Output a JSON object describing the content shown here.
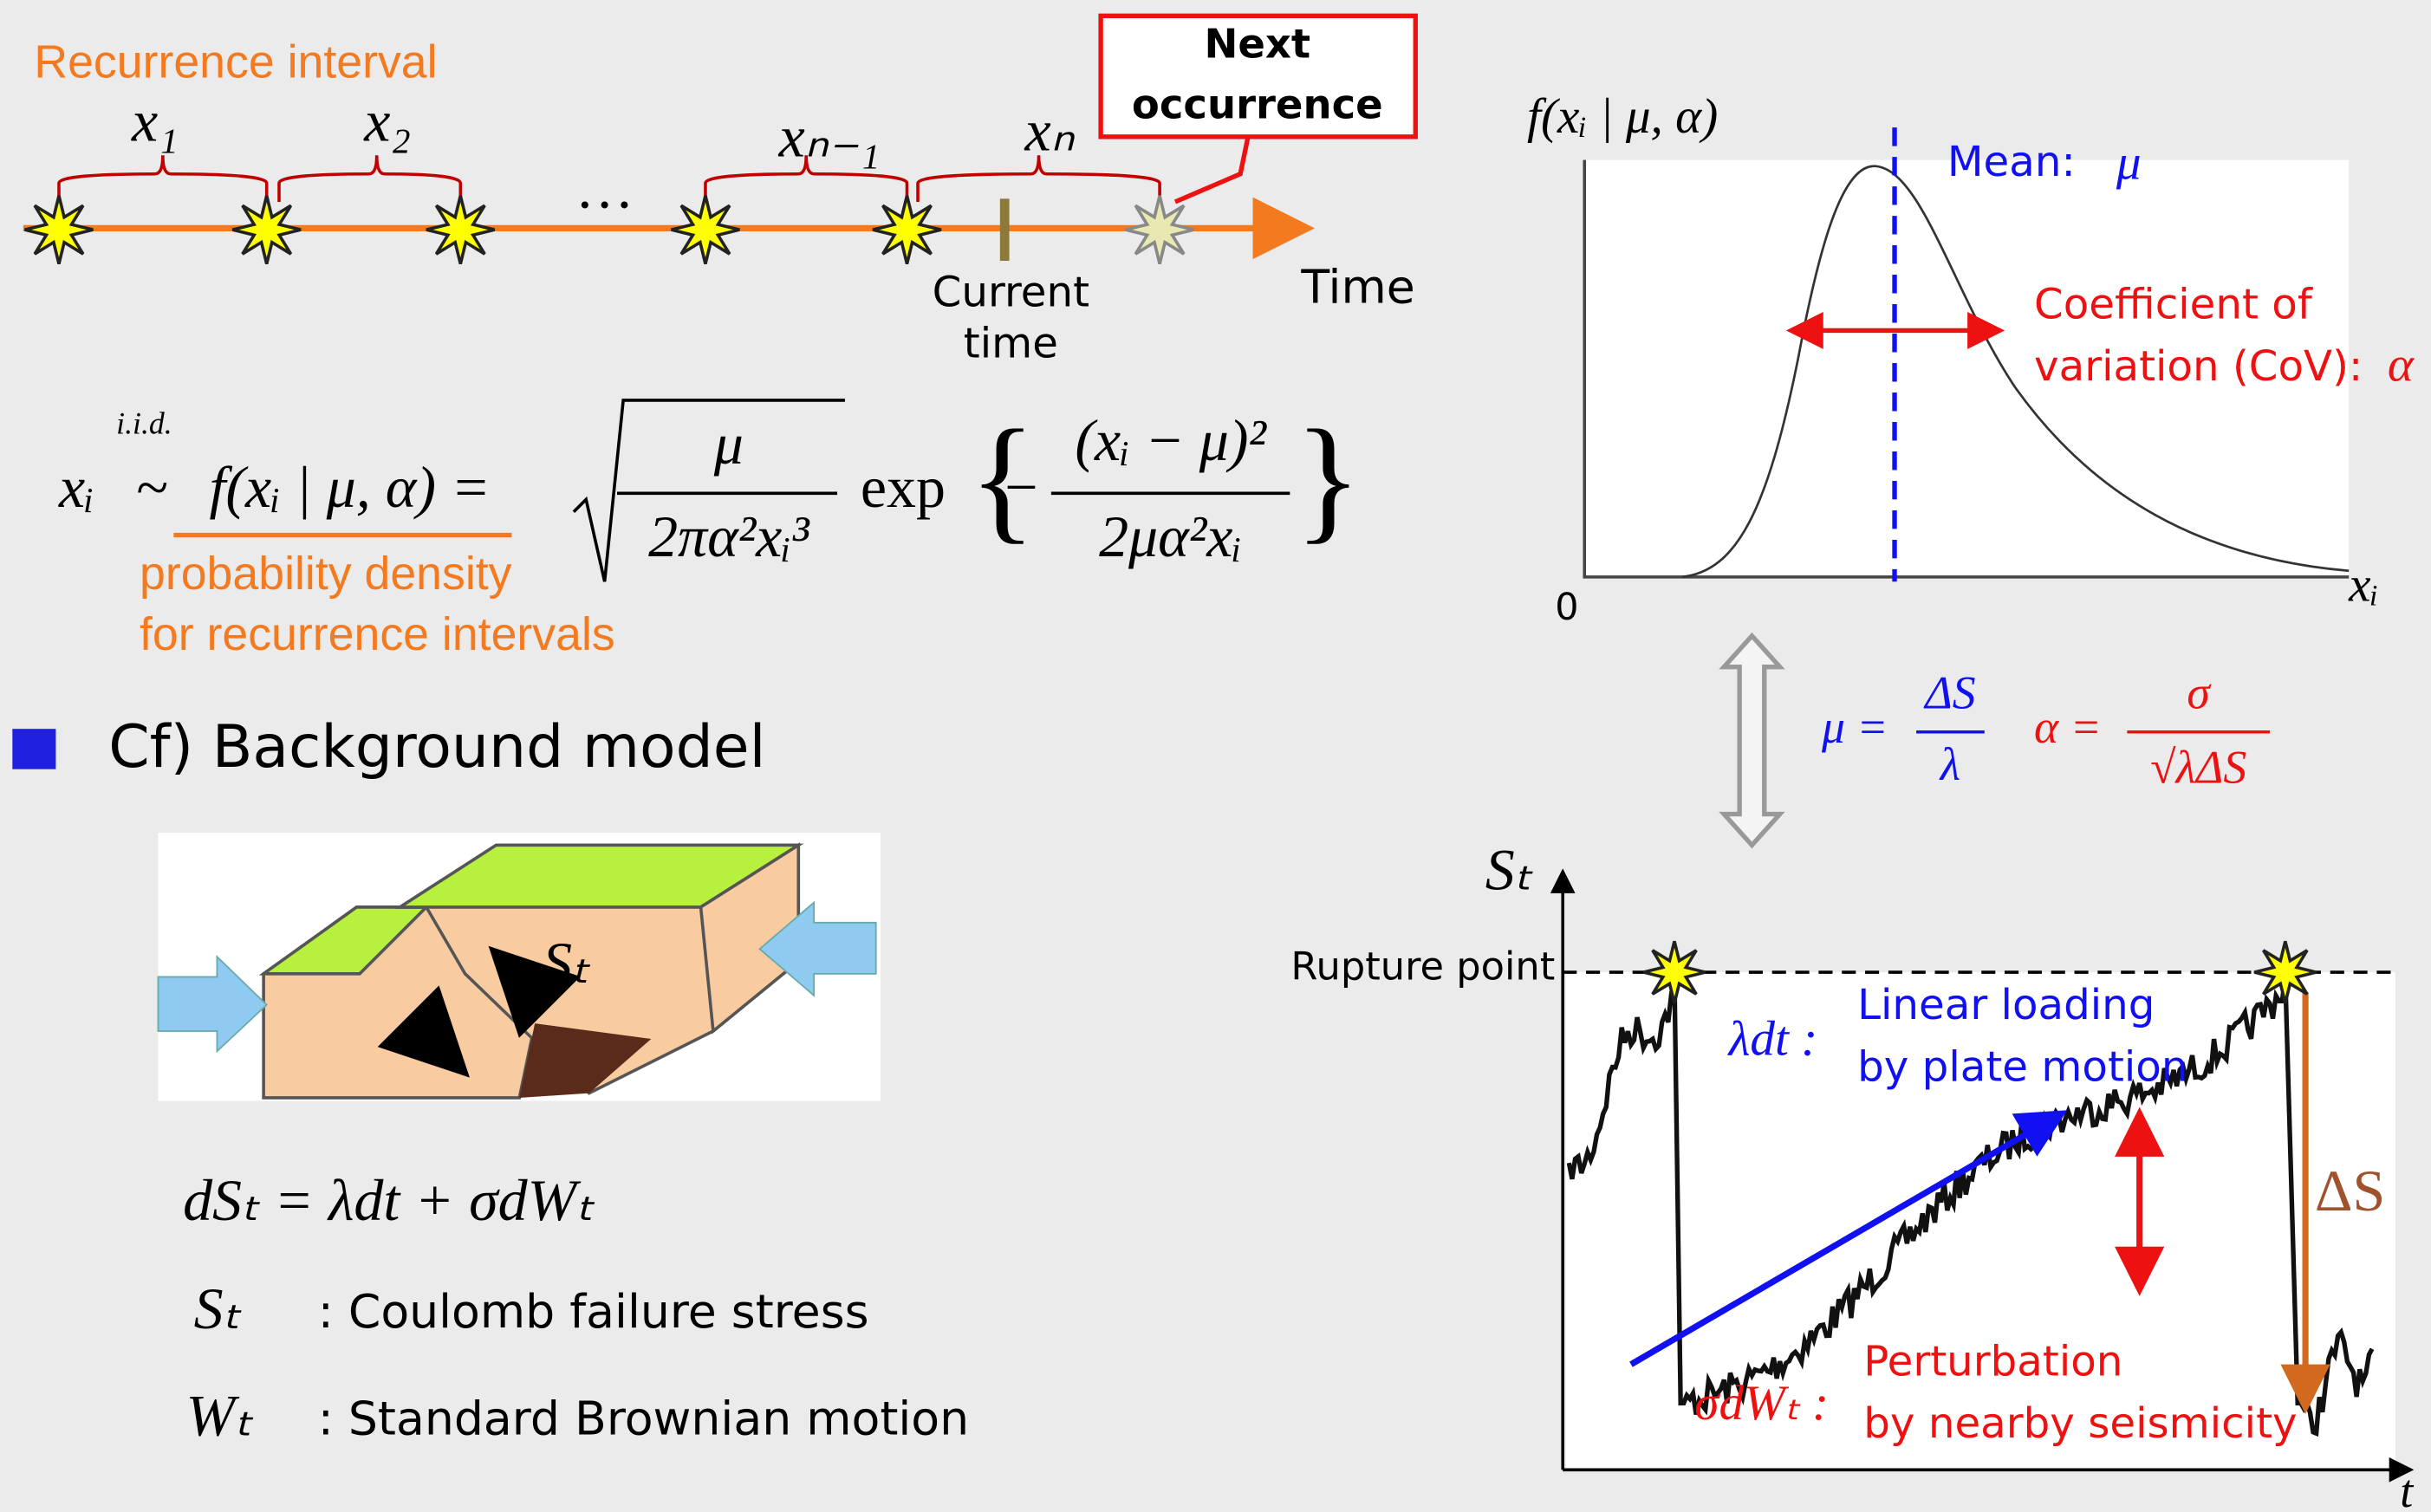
{
  "timeline": {
    "title": "Recurrence interval",
    "intervals": [
      "x₁",
      "x₂",
      "xₙ₋₁",
      "xₙ"
    ],
    "ellipsis": "…",
    "next": [
      "Next",
      "occurrence"
    ],
    "current": [
      "Current",
      "time"
    ],
    "axis": "Time"
  },
  "formula": {
    "lhs": "xᵢ",
    "iid": "i.i.d.",
    "tilde": "~",
    "density": "f(xᵢ | μ, α) =",
    "sqrt_num": "μ",
    "sqrt_den": "2πα²xᵢ³",
    "exp": "exp",
    "exp_num": "(xᵢ − μ)²",
    "exp_den": "2μα²xᵢ",
    "minus": "−",
    "note": [
      "probability density",
      "for recurrence intervals"
    ]
  },
  "section": {
    "title": "Cf) Background model",
    "block_label": "Sₜ",
    "sde": "dSₜ = λdt + σdWₜ",
    "defs": [
      {
        "symbol": "Sₜ",
        "text": ": Coulomb failure stress"
      },
      {
        "symbol": "Wₜ",
        "text": ": Standard Brownian motion"
      }
    ]
  },
  "density_plot": {
    "ylabel": "f(xᵢ | μ, α)",
    "mean": "Mean:",
    "mean_symbol": "μ",
    "cov": [
      "Coefficient of",
      "variation (CoV):"
    ],
    "cov_symbol": "α",
    "origin": "0",
    "xlabel": "xᵢ"
  },
  "relation": {
    "mu": "μ =",
    "mu_num": "ΔS",
    "mu_den": "λ",
    "alpha": "α =",
    "alpha_num": "σ",
    "alpha_den": "√λΔS"
  },
  "stress_plot": {
    "ylabel": "Sₜ",
    "rupture": "Rupture point",
    "drift": "λdt :",
    "drift_text": [
      "Linear loading",
      "by plate motion"
    ],
    "drop": "ΔS",
    "noise": "σdWₜ :",
    "noise_text": [
      "Perturbation",
      "by nearby seismicity"
    ],
    "xlabel": "t"
  }
}
